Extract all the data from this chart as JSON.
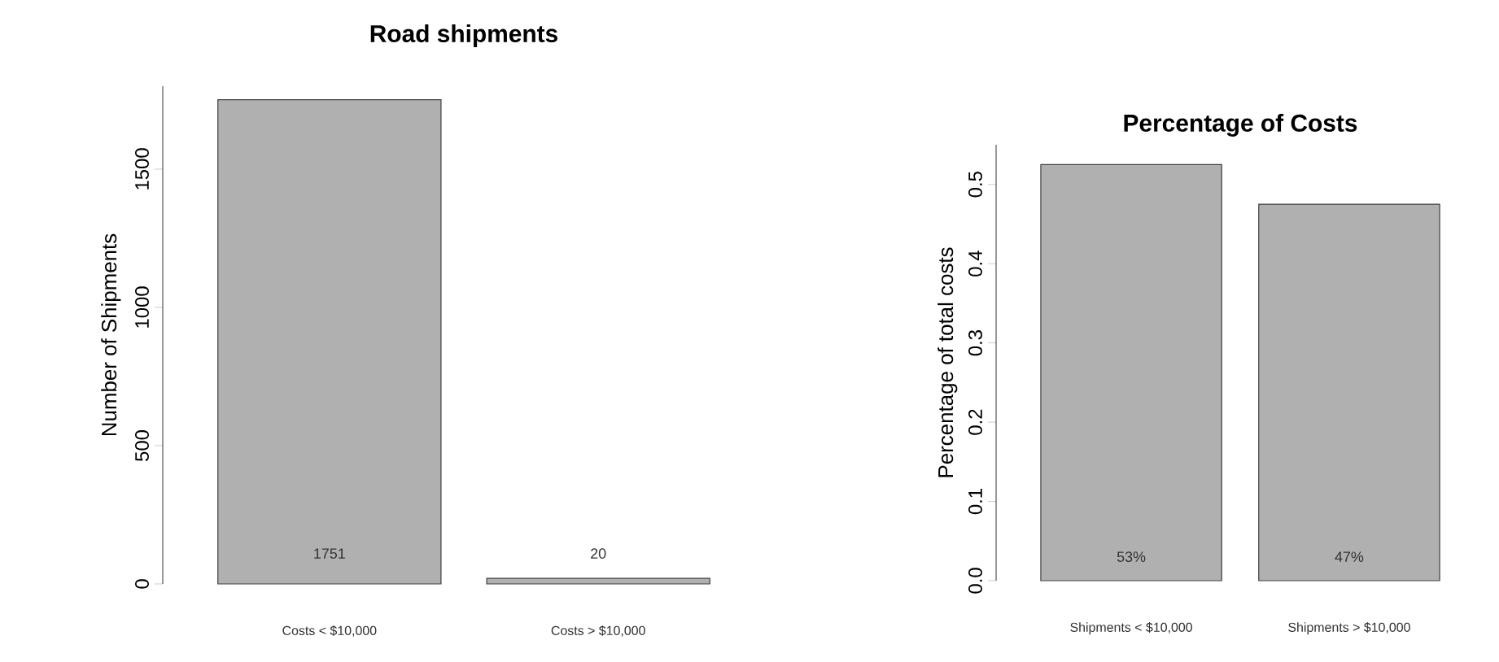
{
  "chart_data": [
    {
      "type": "bar",
      "title": "Road shipments",
      "ylabel": "Number of Shipments",
      "categories": [
        "Costs < $10,000",
        "Costs > $10,000"
      ],
      "values": [
        1751,
        20
      ],
      "color": "#b0b0b0",
      "ylim": [
        0,
        1800
      ],
      "yticks": [
        0,
        500,
        1000,
        1500
      ],
      "data_labels": true
    },
    {
      "type": "bar",
      "title": "Percentage of Costs",
      "ylabel": "Percentage of total costs",
      "categories": [
        "Shipments < $10,000",
        "Shipments > $10,000"
      ],
      "values": [
        0.525,
        0.475
      ],
      "value_labels": [
        "53%",
        "47%"
      ],
      "color": "#b0b0b0",
      "ylim": [
        0,
        0.55
      ],
      "yticks": [
        {
          "value": 0,
          "label": "0.0"
        },
        0.1,
        0.2,
        0.3,
        0.4,
        0.5
      ]
    }
  ]
}
